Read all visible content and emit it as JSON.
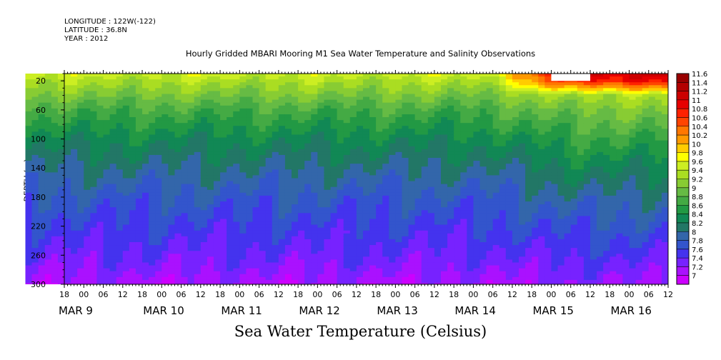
{
  "header": {
    "longitude": "LONGITUDE : 122W(-122)",
    "latitude": "LATITUDE : 36.8N",
    "year": "YEAR : 2012"
  },
  "title": "Hourly Gridded MBARI Mooring M1 Sea Water Temperature and Salinity Observations",
  "subtitle": "Sea Water Temperature (Celsius)",
  "chart_data": {
    "type": "heatmap",
    "title": "Hourly Gridded MBARI Mooring M1 Sea Water Temperature and Salinity Observations",
    "subtitle": "Sea Water Temperature (Celsius)",
    "xlabel": "",
    "ylabel": "DEPTH (m)",
    "ylim": [
      300,
      10
    ],
    "y_reversed": true,
    "y_ticks": [
      20,
      60,
      100,
      140,
      180,
      220,
      260,
      300
    ],
    "x_range_hours": [
      0,
      186
    ],
    "x_hour_ticks": [
      "18",
      "00",
      "06",
      "12",
      "18",
      "00",
      "06",
      "12",
      "18",
      "00",
      "06",
      "12",
      "18",
      "00",
      "06",
      "12",
      "18",
      "00",
      "06",
      "12",
      "18",
      "00",
      "06",
      "12",
      "18",
      "00",
      "06",
      "12",
      "18",
      "00",
      "06",
      "12"
    ],
    "x_day_labels": [
      "MAR  9",
      "MAR 10",
      "MAR 11",
      "MAR 12",
      "MAR 13",
      "MAR 14",
      "MAR 15",
      "MAR 16"
    ],
    "data_start": "MAR 8 12:00",
    "data_start_hour": 12,
    "color_scale": {
      "levels": [
        "11.6",
        "11.4",
        "11.2",
        "11",
        "10.8",
        "10.6",
        "10.4",
        "10.2",
        "10",
        "9.8",
        "9.6",
        "9.4",
        "9.2",
        "9",
        "8.8",
        "8.6",
        "8.4",
        "8.2",
        "8",
        "7.8",
        "7.6",
        "7.4",
        "7.2",
        "7"
      ],
      "colors": [
        "#990000",
        "#b30000",
        "#cc0000",
        "#e60000",
        "#ff2200",
        "#ff4400",
        "#ff7700",
        "#ff9900",
        "#ffcc00",
        "#ffff00",
        "#ccee22",
        "#aadd22",
        "#88cc33",
        "#66bb44",
        "#44aa44",
        "#229944",
        "#118855",
        "#227766",
        "#3366aa",
        "#3355cc",
        "#4433ee",
        "#7722ff",
        "#aa11ff",
        "#cc00ff"
      ]
    },
    "profile": {
      "depths": [
        10,
        20,
        40,
        60,
        80,
        100,
        140,
        180,
        220,
        260,
        300
      ],
      "temperature_mar9": [
        9.7,
        9.5,
        9.2,
        8.9,
        8.7,
        8.5,
        8.2,
        7.95,
        7.75,
        7.55,
        7.3
      ],
      "temperature_mar15": [
        11.3,
        11.0,
        9.5,
        9.2,
        9.0,
        8.8,
        8.45,
        8.15,
        7.9,
        7.65,
        7.4
      ]
    },
    "missing_region": {
      "x_from": "MAR 15 06:00",
      "x_to": "MAR 15 18:00",
      "depth_from": 10,
      "depth_to": 20
    },
    "grid": false,
    "legend": "right"
  }
}
